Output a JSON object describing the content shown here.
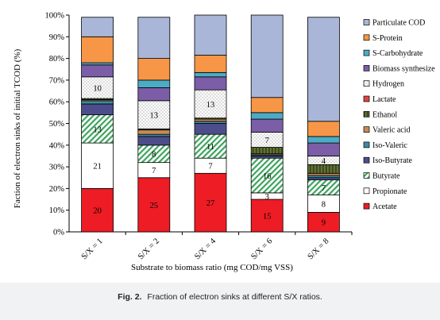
{
  "figure": {
    "caption_num": "Fig. 2.",
    "caption_text": "Fraction of electron sinks at different S/X ratios."
  },
  "chart_data": {
    "type": "bar",
    "stacked": true,
    "title": "",
    "xlabel": "Substrate to biomass ratio (mg COD/mg VSS)",
    "ylabel": "Faction of electron sinks of initial TCOD (%)",
    "ylim": [
      0,
      100
    ],
    "yticks": [
      "0%",
      "10%",
      "20%",
      "30%",
      "40%",
      "50%",
      "60%",
      "70%",
      "80%",
      "90%",
      "100%"
    ],
    "categories": [
      "S/X = 1",
      "S/X = 2",
      "S/X = 4",
      "S/X = 6",
      "S/X = 8"
    ],
    "legend_position": "right",
    "series": [
      {
        "name": "Acetate",
        "color": "#ee1c25",
        "pattern": "solid",
        "values": [
          20,
          25,
          27,
          15,
          9
        ],
        "labels": [
          "20",
          "25",
          "27",
          "15",
          "9"
        ]
      },
      {
        "name": "Propionate",
        "color": "#ffffff",
        "pattern": "solid",
        "values": [
          21,
          7,
          7,
          3,
          8
        ],
        "labels": [
          "21",
          "7",
          "7",
          "3",
          "8"
        ]
      },
      {
        "name": "Butyrate",
        "color": "#3ca35c",
        "pattern": "diagonal",
        "values": [
          13,
          8,
          11,
          16,
          7
        ],
        "labels": [
          "13",
          "8",
          "11",
          "16",
          "7"
        ]
      },
      {
        "name": "Iso-Butyrate",
        "color": "#4d4d8c",
        "pattern": "solid",
        "values": [
          5,
          4,
          5,
          1,
          1
        ],
        "labels": [
          "",
          "",
          "",
          "",
          ""
        ]
      },
      {
        "name": "Iso-Valeric",
        "color": "#3d8ba0",
        "pattern": "solid",
        "values": [
          1.5,
          1,
          1,
          0.5,
          1
        ],
        "labels": [
          "",
          "",
          "",
          "",
          ""
        ]
      },
      {
        "name": "Valeric acid",
        "color": "#c98a55",
        "pattern": "solid",
        "values": [
          0.5,
          2,
          1,
          0.5,
          1
        ],
        "labels": [
          "",
          "",
          "",
          "",
          ""
        ]
      },
      {
        "name": "Ethanol",
        "color": "#4f5e2a",
        "pattern": "vertical",
        "values": [
          0.5,
          0.5,
          0.5,
          3,
          4
        ],
        "labels": [
          "",
          "",
          "",
          "",
          ""
        ]
      },
      {
        "name": "Lactate",
        "color": "#e04545",
        "pattern": "solid",
        "values": [
          0,
          0,
          0,
          0,
          0
        ],
        "labels": [
          "",
          "",
          "",
          "",
          ""
        ]
      },
      {
        "name": "Hydrogen",
        "color": "#ffffff",
        "pattern": "dots",
        "values": [
          10,
          13,
          13,
          7,
          4
        ],
        "labels": [
          "10",
          "13",
          "13",
          "7",
          "4"
        ]
      },
      {
        "name": "Biomass synthesize",
        "color": "#7b5ea7",
        "pattern": "solid",
        "values": [
          5.5,
          6,
          6,
          6,
          6
        ],
        "labels": [
          "",
          "",
          "",
          "",
          ""
        ]
      },
      {
        "name": "S-Carbohydrate",
        "color": "#4bacc6",
        "pattern": "solid",
        "values": [
          1,
          3.5,
          2,
          3,
          3
        ],
        "labels": [
          "",
          "",
          "",
          "",
          ""
        ]
      },
      {
        "name": "S-Protein",
        "color": "#f79646",
        "pattern": "solid",
        "values": [
          12,
          10,
          8,
          7,
          7
        ],
        "labels": [
          "",
          "",
          "",
          "",
          ""
        ]
      },
      {
        "name": "Particulate COD",
        "color": "#a9b6d8",
        "pattern": "solid",
        "values": [
          9,
          19,
          18.5,
          38,
          48
        ],
        "labels": [
          "",
          "",
          "",
          "",
          ""
        ]
      }
    ]
  }
}
